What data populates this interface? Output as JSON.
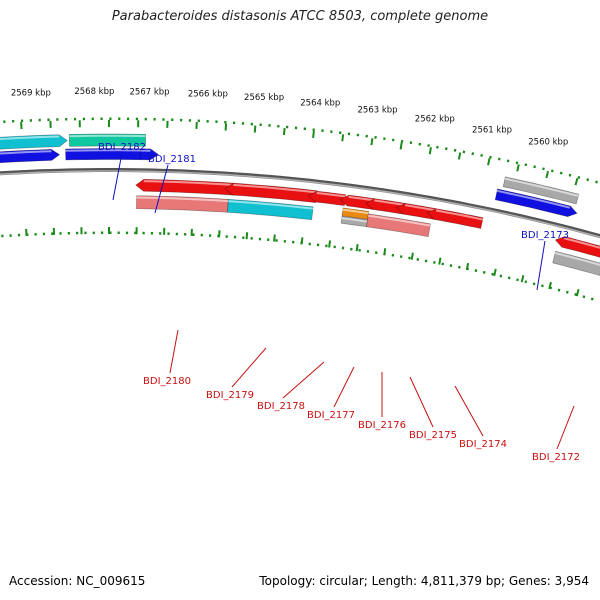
{
  "title": "Parabacteroides distasonis ATCC 8503, complete genome",
  "footer": {
    "accession": "Accession: NC_009615",
    "summary": "Topology: circular; Length: 4,811,379 bp; Genes: 3,954"
  },
  "colors": {
    "blue": "#1010e0",
    "teal": "#10c8a0",
    "cyan": "#10c0d0",
    "red": "#e81010",
    "pink": "#e87878",
    "gray": "#a8a8a8",
    "orange": "#e88a10",
    "backbone": "#707070",
    "ruler": "#1a8a1a",
    "label_forward": "#1010c0",
    "label_reverse": "#c81010"
  },
  "ticks": [
    {
      "label": "2569 kbp"
    },
    {
      "label": "2568 kbp"
    },
    {
      "label": "2567 kbp"
    },
    {
      "label": "2566 kbp"
    },
    {
      "label": "2565 kbp"
    },
    {
      "label": "2564 kbp"
    },
    {
      "label": "2563 kbp"
    },
    {
      "label": "2562 kbp"
    },
    {
      "label": "2561 kbp"
    },
    {
      "label": "2560 kbp"
    }
  ],
  "genes": [
    {
      "label": "BDI_2182",
      "strand": "forward"
    },
    {
      "label": "BDI_2181",
      "strand": "forward"
    },
    {
      "label": "BDI_2173",
      "strand": "forward"
    },
    {
      "label": "BDI_2180",
      "strand": "reverse"
    },
    {
      "label": "BDI_2179",
      "strand": "reverse"
    },
    {
      "label": "BDI_2178",
      "strand": "reverse"
    },
    {
      "label": "BDI_2177",
      "strand": "reverse"
    },
    {
      "label": "BDI_2176",
      "strand": "reverse"
    },
    {
      "label": "BDI_2175",
      "strand": "reverse"
    },
    {
      "label": "BDI_2174",
      "strand": "reverse"
    },
    {
      "label": "BDI_2172",
      "strand": "reverse"
    }
  ]
}
